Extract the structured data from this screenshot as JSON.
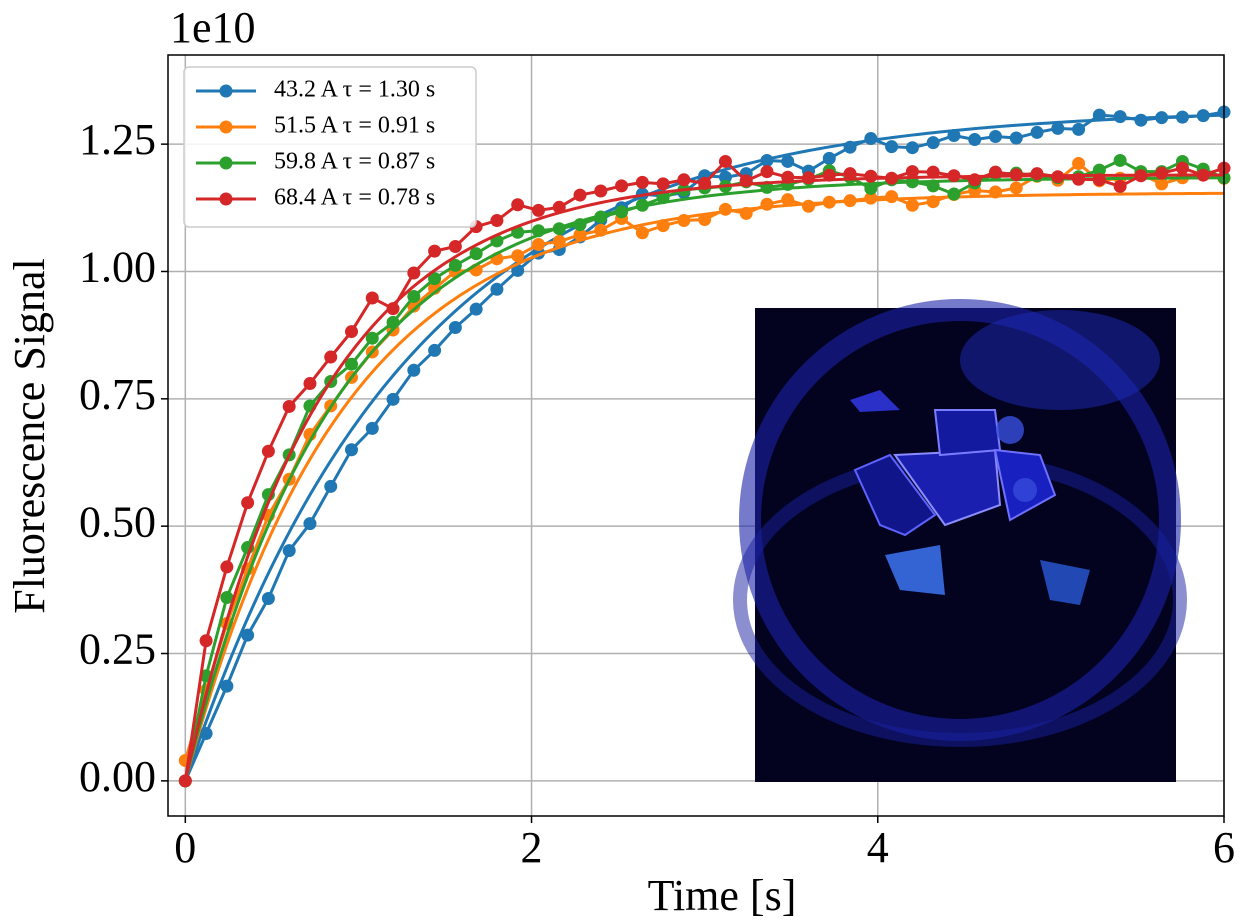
{
  "chart_data": {
    "type": "line",
    "offset_label": "1e10",
    "xlabel": "Time [s]",
    "ylabel": "Fluorescence Signal",
    "xlim": [
      -0.1,
      6
    ],
    "ylim": [
      -0.069,
      1.425
    ],
    "xticks": [
      0,
      2,
      4,
      6
    ],
    "yticks": [
      {
        "value": 0,
        "label": "0.00"
      },
      0.25,
      {
        "value": 0.5,
        "label": "0.50"
      },
      0.75,
      {
        "value": 1,
        "label": "1.00"
      },
      1.25
    ],
    "grid": true,
    "legend": "upper left",
    "x": [
      0,
      0.12,
      0.24,
      0.36,
      0.48,
      0.6,
      0.72,
      0.84,
      0.96,
      1.08,
      1.2,
      1.32,
      1.44,
      1.56,
      1.68,
      1.8,
      1.92,
      2.04,
      2.16,
      2.28,
      2.4,
      2.52,
      2.64,
      2.76,
      2.88,
      3.0,
      3.12,
      3.24,
      3.36,
      3.48,
      3.6,
      3.72,
      3.84,
      3.96,
      4.08,
      4.2,
      4.32,
      4.44,
      4.56,
      4.68,
      4.8,
      4.92,
      5.04,
      5.16,
      5.28,
      5.4,
      5.52,
      5.64,
      5.76,
      5.88,
      6.0
    ],
    "series": [
      {
        "name": "43.2 A τ = 1.30 s",
        "color": "#1f77b4",
        "fit": {
          "amplitude": 1.32,
          "tau": 1.3
        },
        "values": [
          0,
          0.093,
          0.186,
          0.286,
          0.358,
          0.452,
          0.505,
          0.578,
          0.65,
          0.692,
          0.749,
          0.806,
          0.845,
          0.89,
          0.926,
          0.965,
          1.002,
          1.036,
          1.043,
          1.068,
          1.101,
          1.125,
          1.152,
          1.148,
          1.155,
          1.188,
          1.185,
          1.192,
          1.218,
          1.216,
          1.197,
          1.222,
          1.244,
          1.261,
          1.245,
          1.243,
          1.253,
          1.267,
          1.259,
          1.265,
          1.262,
          1.273,
          1.281,
          1.279,
          1.307,
          1.304,
          1.297,
          1.302,
          1.303,
          1.306,
          1.313
        ]
      },
      {
        "name": "51.5 A τ = 0.91 s",
        "color": "#ff7f0e",
        "fit": {
          "amplitude": 1.155,
          "tau": 0.91
        },
        "values": [
          0.04,
          0.178,
          0.309,
          0.416,
          0.521,
          0.592,
          0.68,
          0.736,
          0.792,
          0.842,
          0.885,
          0.932,
          0.967,
          1.0,
          1.003,
          1.025,
          1.031,
          1.053,
          1.059,
          1.072,
          1.081,
          1.104,
          1.076,
          1.09,
          1.1,
          1.102,
          1.122,
          1.114,
          1.132,
          1.141,
          1.128,
          1.136,
          1.139,
          1.144,
          1.147,
          1.13,
          1.137,
          1.151,
          1.159,
          1.156,
          1.164,
          1.187,
          1.179,
          1.212,
          1.178,
          1.183,
          1.191,
          1.172,
          1.184,
          1.192,
          1.183
        ]
      },
      {
        "name": "59.8 A τ = 0.87 s",
        "color": "#2ca02c",
        "fit": {
          "amplitude": 1.185,
          "tau": 0.87
        },
        "values": [
          0,
          0.206,
          0.36,
          0.458,
          0.562,
          0.64,
          0.736,
          0.784,
          0.818,
          0.869,
          0.9,
          0.951,
          0.986,
          1.012,
          1.035,
          1.06,
          1.077,
          1.08,
          1.084,
          1.092,
          1.107,
          1.117,
          1.13,
          1.145,
          1.16,
          1.164,
          1.167,
          1.176,
          1.165,
          1.171,
          1.181,
          1.198,
          1.185,
          1.163,
          1.18,
          1.176,
          1.168,
          1.152,
          1.174,
          1.191,
          1.193,
          1.188,
          1.184,
          1.186,
          1.199,
          1.218,
          1.196,
          1.196,
          1.216,
          1.201,
          1.184
        ]
      },
      {
        "name": "68.4 A τ = 0.78 s",
        "color": "#d62728",
        "fit": {
          "amplitude": 1.19,
          "tau": 0.78
        },
        "values": [
          0,
          0.275,
          0.42,
          0.546,
          0.647,
          0.735,
          0.78,
          0.832,
          0.882,
          0.948,
          0.927,
          0.997,
          1.04,
          1.049,
          1.088,
          1.1,
          1.131,
          1.12,
          1.126,
          1.15,
          1.158,
          1.168,
          1.175,
          1.172,
          1.18,
          1.173,
          1.216,
          1.178,
          1.196,
          1.185,
          1.184,
          1.189,
          1.192,
          1.187,
          1.183,
          1.196,
          1.195,
          1.188,
          1.18,
          1.195,
          1.19,
          1.192,
          1.186,
          1.181,
          1.18,
          1.167,
          1.188,
          1.193,
          1.203,
          1.189,
          1.203
        ]
      }
    ]
  }
}
